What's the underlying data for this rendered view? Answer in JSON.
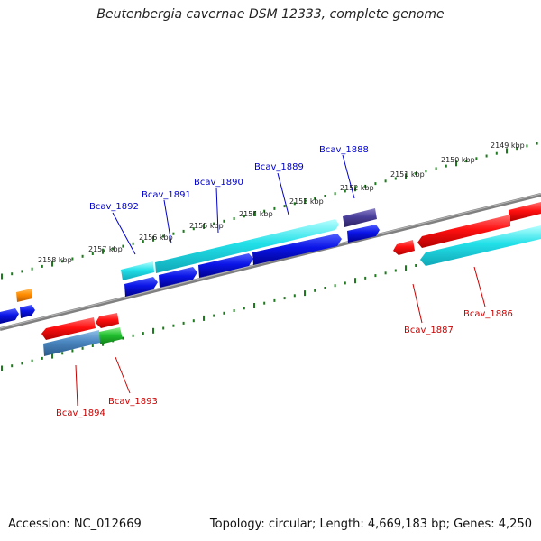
{
  "title": "Beutenbergia cavernae DSM 12333, complete genome",
  "footer": {
    "accession": "Accession: NC_012669",
    "summary": "Topology: circular; Length: 4,669,183 bp; Genes: 4,250"
  },
  "colors": {
    "backbone": "#808080",
    "tick": "#1e7a1e",
    "label_top": "#0000cc",
    "label_bottom": "#cc0000",
    "gene_red": "#ff1010",
    "gene_cyan": "#22e0e8",
    "gene_blue": "#0a14e6",
    "gene_navy": "#4a3f9a",
    "gene_steel": "#4a86c0",
    "gene_green": "#22c030",
    "gene_orange": "#ff8c00"
  },
  "scale_labels": [
    "2149 kbp",
    "2150 kbp",
    "2151 kbp",
    "2152 kbp",
    "2153 kbp",
    "2154 kbp",
    "2155 kbp",
    "2156 kbp",
    "2157 kbp",
    "2158 kbp"
  ],
  "gene_labels_top": [
    "Bcav_1888",
    "Bcav_1889",
    "Bcav_1890",
    "Bcav_1891",
    "Bcav_1892"
  ],
  "gene_labels_bottom": [
    "Bcav_1886",
    "Bcav_1887",
    "Bcav_1893",
    "Bcav_1894"
  ]
}
